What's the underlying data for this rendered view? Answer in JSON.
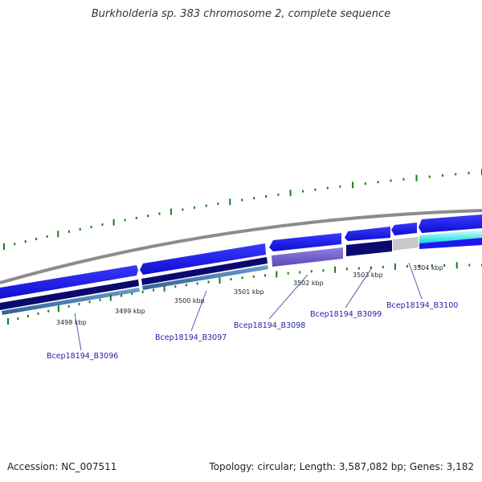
{
  "title": "Burkholderia sp. 383 chromosome 2, complete sequence",
  "kbp_labels": [
    "3498 kbp",
    "3499 kbp",
    "3500 kbp",
    "3501 kbp",
    "3502 kbp",
    "3503 kbp",
    "3504 kbp"
  ],
  "gene_labels": [
    "Bcep18194_B3096",
    "Bcep18194_B3097",
    "Bcep18194_B3098",
    "Bcep18194_B3099",
    "Bcep18194_B3100"
  ],
  "footer": {
    "accession": "Accession: NC_007511",
    "summary": "Topology: circular; Length: 3,587,082 bp; Genes: 3,182"
  },
  "colors": {
    "background": "#ffffff",
    "backbone": "#8c8c8c",
    "forward_gene": "#1a1aee",
    "reverse_gene": "#1a1aee",
    "track_navy": "#0a0a6e",
    "track_steel": "#4a7fb5",
    "track_lavender": "#7060cc",
    "track_gray": "#c8c8c8",
    "track_cyan": "#00e5e5",
    "tick": "#1a7a1a",
    "label_text": "#1f1fa8"
  }
}
